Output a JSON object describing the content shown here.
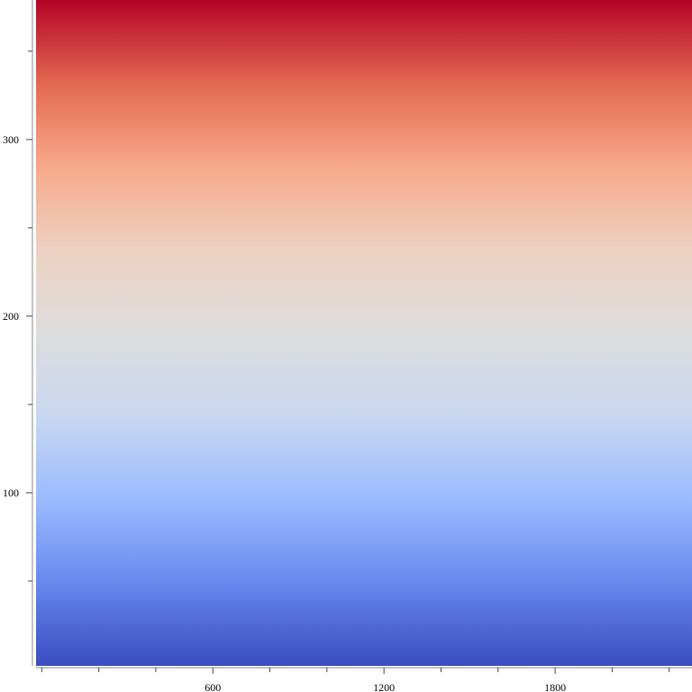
{
  "chart_data": {
    "type": "heatmap",
    "title": "",
    "xlabel": "",
    "ylabel": "",
    "colormap": "coolwarm",
    "colormap_stops": [
      "#3b4cc0",
      "#6788ee",
      "#9abbff",
      "#c9d7f0",
      "#dddddd",
      "#edd1c2",
      "#f7a889",
      "#e26952",
      "#b40426"
    ],
    "gradient_direction": "vertical",
    "value_low_at": "bottom",
    "value_high_at": "top",
    "xlim": [
      -20,
      2280
    ],
    "ylim": [
      2,
      379
    ],
    "x_major_ticks": [
      600,
      1200,
      1800
    ],
    "x_tick_labels": [
      "600",
      "1200",
      "1800"
    ],
    "x_minor_step": 200,
    "y_major_ticks": [
      100,
      200,
      300
    ],
    "y_tick_labels": [
      "100",
      "200",
      "300"
    ],
    "y_minor_step": 50,
    "grid": false,
    "legend": "none"
  }
}
